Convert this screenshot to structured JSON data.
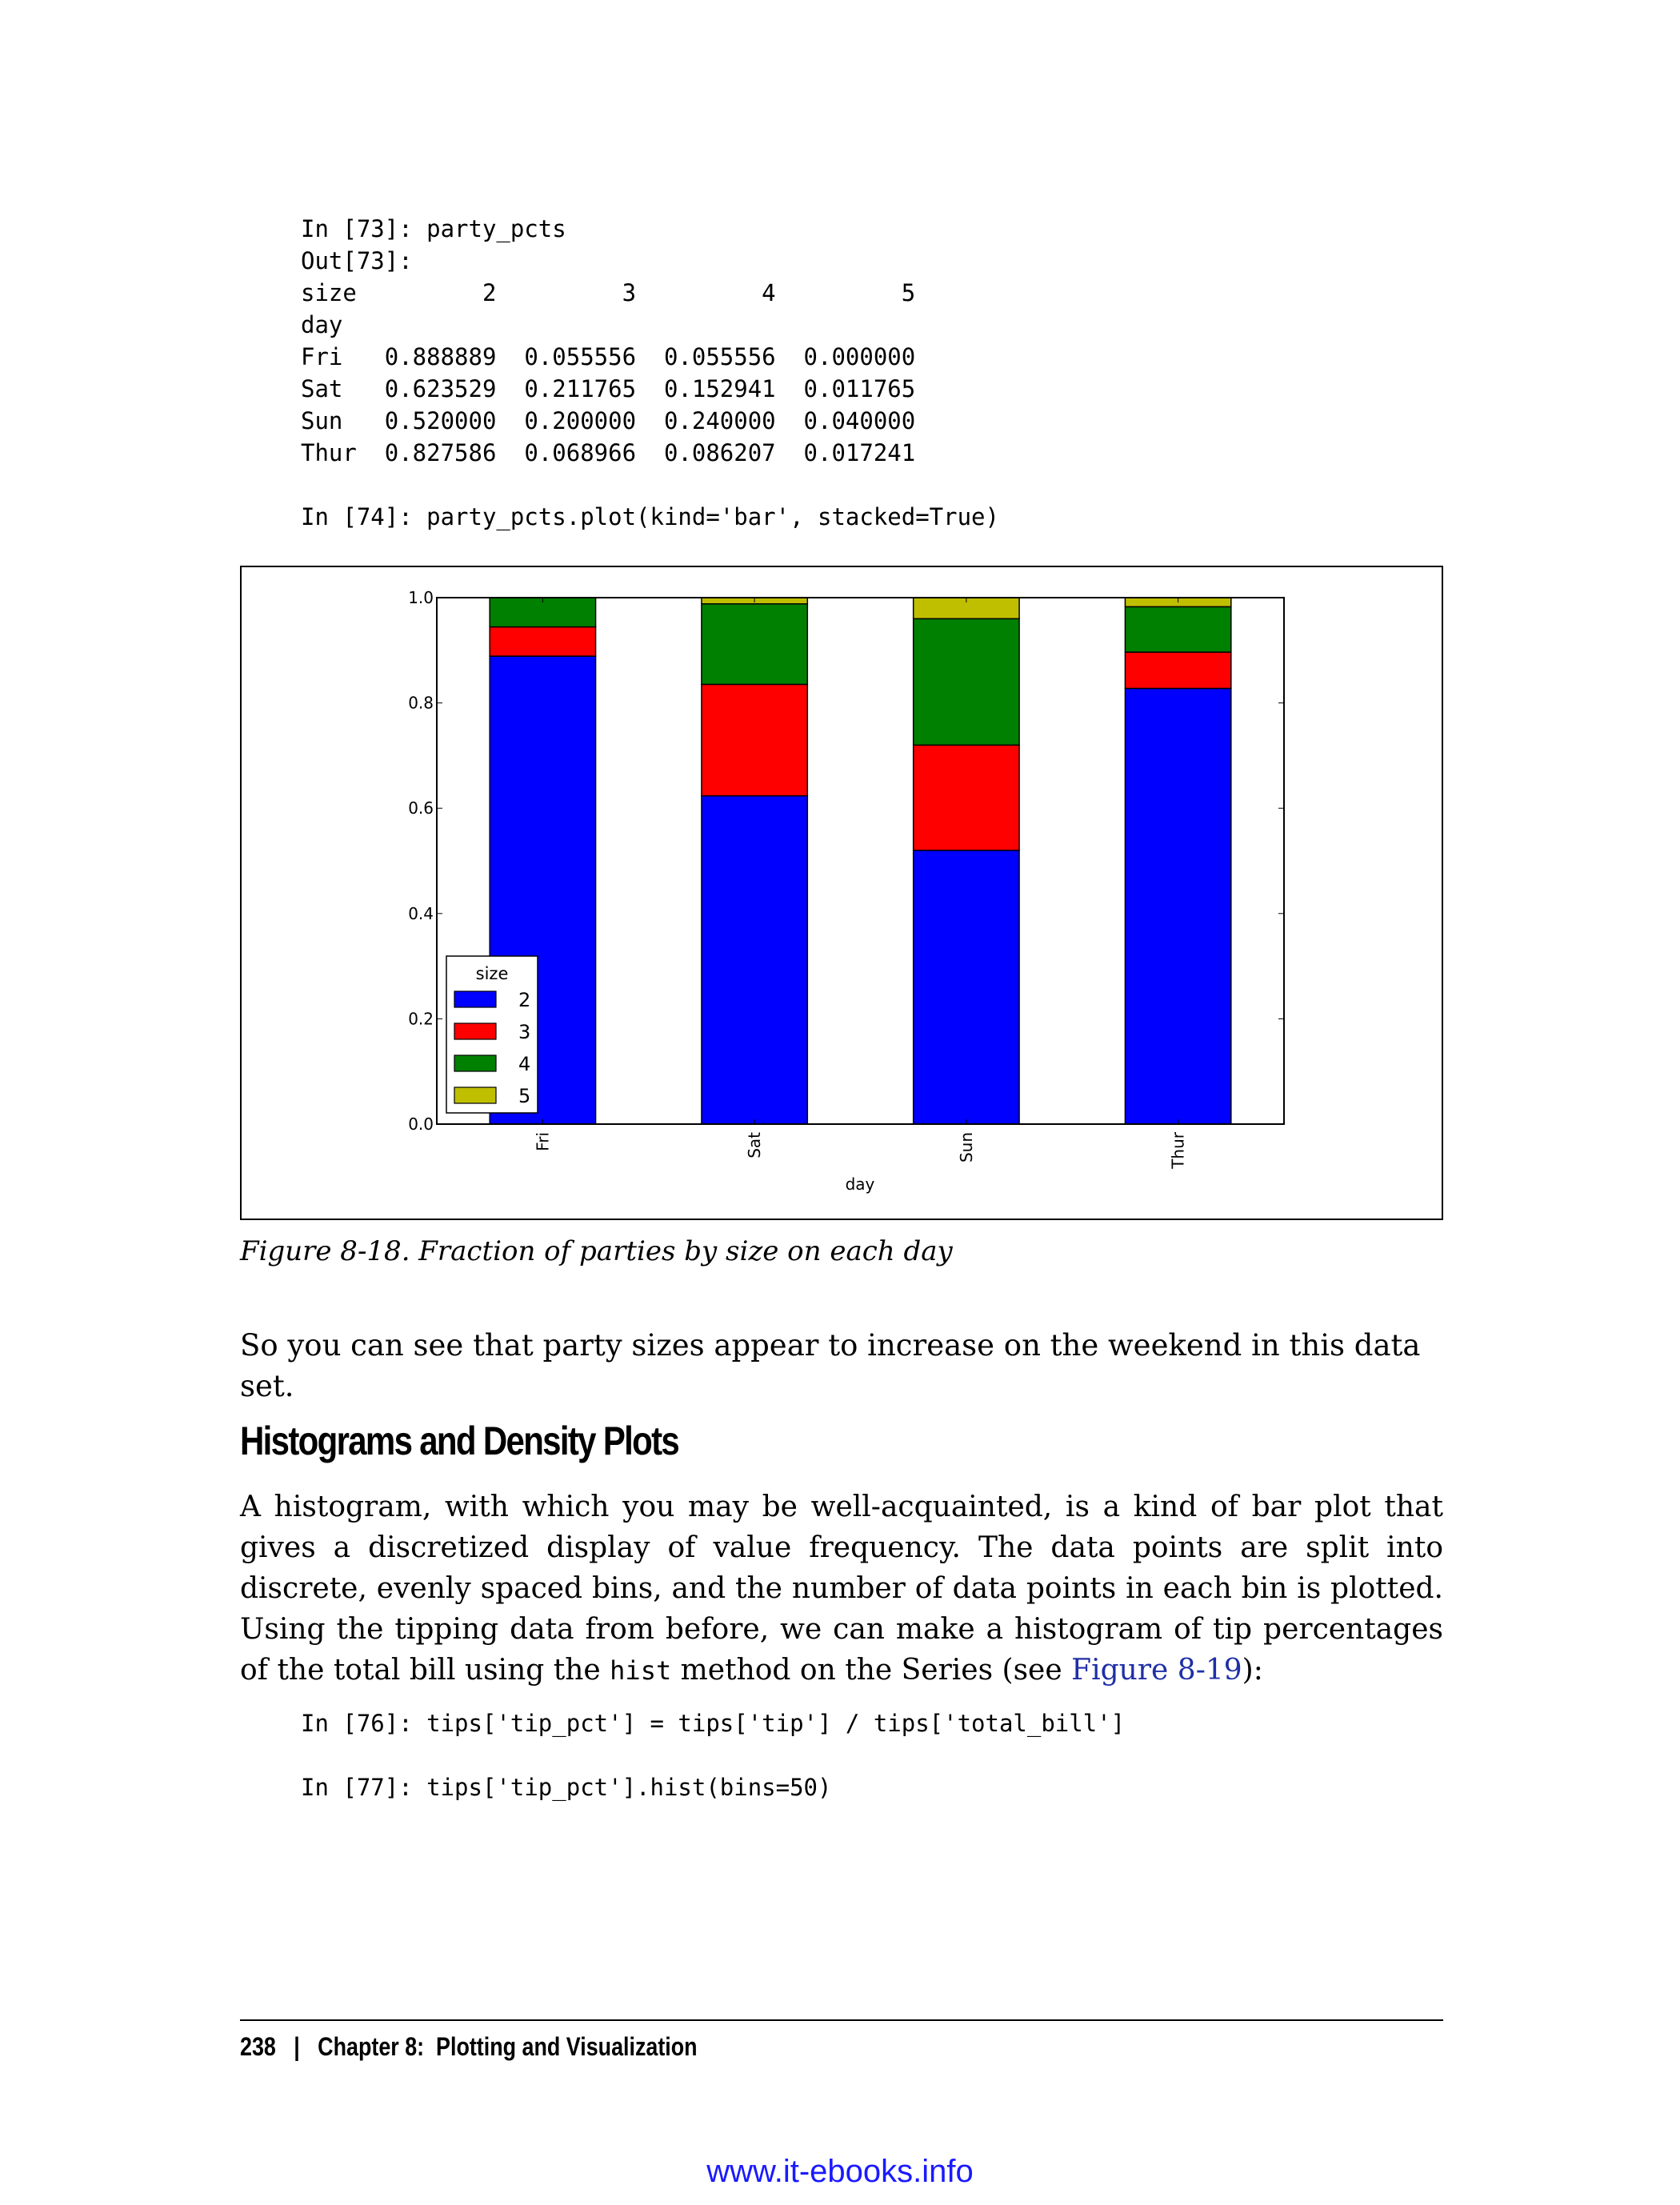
{
  "code_block_1": "In [73]: party_pcts\nOut[73]:\nsize         2         3         4         5\nday\nFri   0.888889  0.055556  0.055556  0.000000\nSat   0.623529  0.211765  0.152941  0.011765\nSun   0.520000  0.200000  0.240000  0.040000\nThur  0.827586  0.068966  0.086207  0.017241",
  "code_block_2": "In [74]: party_pcts.plot(kind='bar', stacked=True)",
  "chart_data": {
    "type": "bar",
    "stacked": true,
    "categories": [
      "Fri",
      "Sat",
      "Sun",
      "Thur"
    ],
    "series": [
      {
        "name": "2",
        "color": "#0000ff",
        "values": [
          0.888889,
          0.623529,
          0.52,
          0.827586
        ]
      },
      {
        "name": "3",
        "color": "#ff0000",
        "values": [
          0.055556,
          0.211765,
          0.2,
          0.068966
        ]
      },
      {
        "name": "4",
        "color": "#008000",
        "values": [
          0.055556,
          0.152941,
          0.24,
          0.086207
        ]
      },
      {
        "name": "5",
        "color": "#bfbf00",
        "values": [
          0.0,
          0.011765,
          0.04,
          0.017241
        ]
      }
    ],
    "legend_title": "size",
    "legend_position": "lower-left",
    "xlabel": "day",
    "ylabel": "",
    "ylim": [
      0.0,
      1.0
    ],
    "yticks": [
      "0.0",
      "0.2",
      "0.4",
      "0.6",
      "0.8",
      "1.0"
    ],
    "grid": false
  },
  "caption": "Figure 8-18. Fraction of parties by size on each day",
  "paragraph_1": "So you can see that party sizes appear to increase on the weekend in this data set.",
  "section_heading": "Histograms and Density Plots",
  "paragraph_2": {
    "text_before": "A histogram, with which you may be well-acquainted, is a kind of bar plot that gives a discretized display of value frequency. The data points are split into discrete, evenly spaced bins, and the number of data points in each bin is plotted. Using the tipping data from before, we can make a histogram of tip percentages of the total bill using the ",
    "code_word": "hist",
    "text_middle": " method on the Series (see ",
    "link_text": "Figure 8-19",
    "text_after": "):"
  },
  "code_block_3": "In [76]: tips['tip_pct'] = tips['tip'] / tips['total_bill']",
  "code_block_4": "In [77]: tips['tip_pct'].hist(bins=50)",
  "footer": {
    "page_number": "238",
    "separator": "|",
    "chapter": "Chapter 8:  Plotting and Visualization"
  },
  "watermark": "www.it-ebooks.info"
}
